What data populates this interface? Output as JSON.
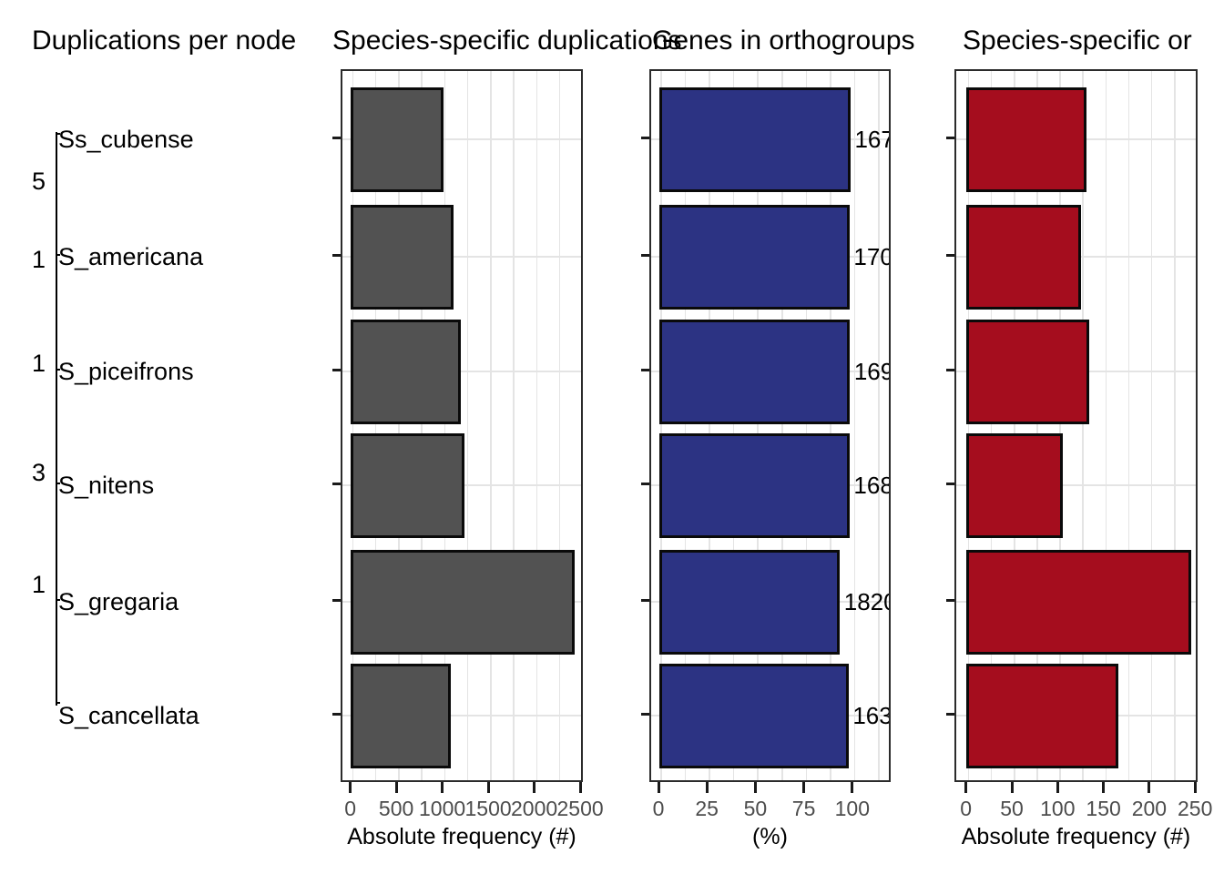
{
  "figure_titles": [
    {
      "text": "Duplications per node"
    },
    {
      "text": "Species-specific duplications"
    },
    {
      "text": "Genes in orthogroups"
    },
    {
      "text": "Species-specific or"
    }
  ],
  "tree": {
    "species_labels": [
      "Ss_cubense",
      "S_americana",
      "S_piceifrons",
      "S_nitens",
      "S_gregaria",
      "S_cancellata"
    ],
    "node_labels": [
      "5",
      "1",
      "1",
      "3",
      "1"
    ]
  },
  "colors": {
    "gray_bar": "#525252",
    "blue_bar": "#2c3383",
    "red_bar": "#a50d1e",
    "bar_outline": "#0a0a0a",
    "panel_border": "#2b2b2b",
    "gridline": "#e4e4e4",
    "tick_label": "#4d4d4d"
  },
  "chart_data": [
    {
      "type": "bar",
      "orientation": "horizontal",
      "title": "Duplications per node",
      "categories": [
        "Ss_cubense",
        "S_americana",
        "S_piceifrons",
        "S_nitens",
        "S_gregaria",
        "S_cancellata"
      ],
      "values": [
        975,
        1090,
        1170,
        1210,
        2405,
        1060
      ],
      "xlabel": "Absolute frequency (#)",
      "xticks": [
        0,
        500,
        1000,
        1500,
        2000,
        2500
      ],
      "xlim": [
        0,
        2530
      ],
      "minor_step": 250,
      "grid": true,
      "bar_color": "#525252"
    },
    {
      "type": "bar",
      "orientation": "horizontal",
      "title": "Genes in orthogroups",
      "categories": [
        "Ss_cubense",
        "S_americana",
        "S_piceifrons",
        "S_nitens",
        "S_gregaria",
        "S_cancellata"
      ],
      "values": [
        97.5,
        97,
        97.2,
        97,
        92,
        96.5
      ],
      "bar_labels": [
        "167",
        "170",
        "169",
        "168",
        "182",
        "163"
      ],
      "bar_label_clipped_digit": "0",
      "xlabel": "(%)",
      "xticks": [
        0,
        25,
        50,
        75,
        100
      ],
      "xlim": [
        0,
        119.5
      ],
      "minor_step": 12.5,
      "grid": true,
      "bar_color": "#2c3383"
    },
    {
      "type": "bar",
      "orientation": "horizontal",
      "title": "Species-specific orthogroups (clipped in figure)",
      "categories": [
        "Ss_cubense",
        "S_americana",
        "S_piceifrons",
        "S_nitens",
        "S_gregaria",
        "S_cancellata"
      ],
      "values": [
        128,
        122,
        131,
        102,
        242,
        163
      ],
      "xlabel": "Absolute frequency (#)",
      "xticks": [
        0,
        50,
        100,
        150,
        200,
        250
      ],
      "xlim": [
        0,
        253
      ],
      "minor_step": 25,
      "grid": true,
      "bar_color": "#a50d1e"
    }
  ]
}
